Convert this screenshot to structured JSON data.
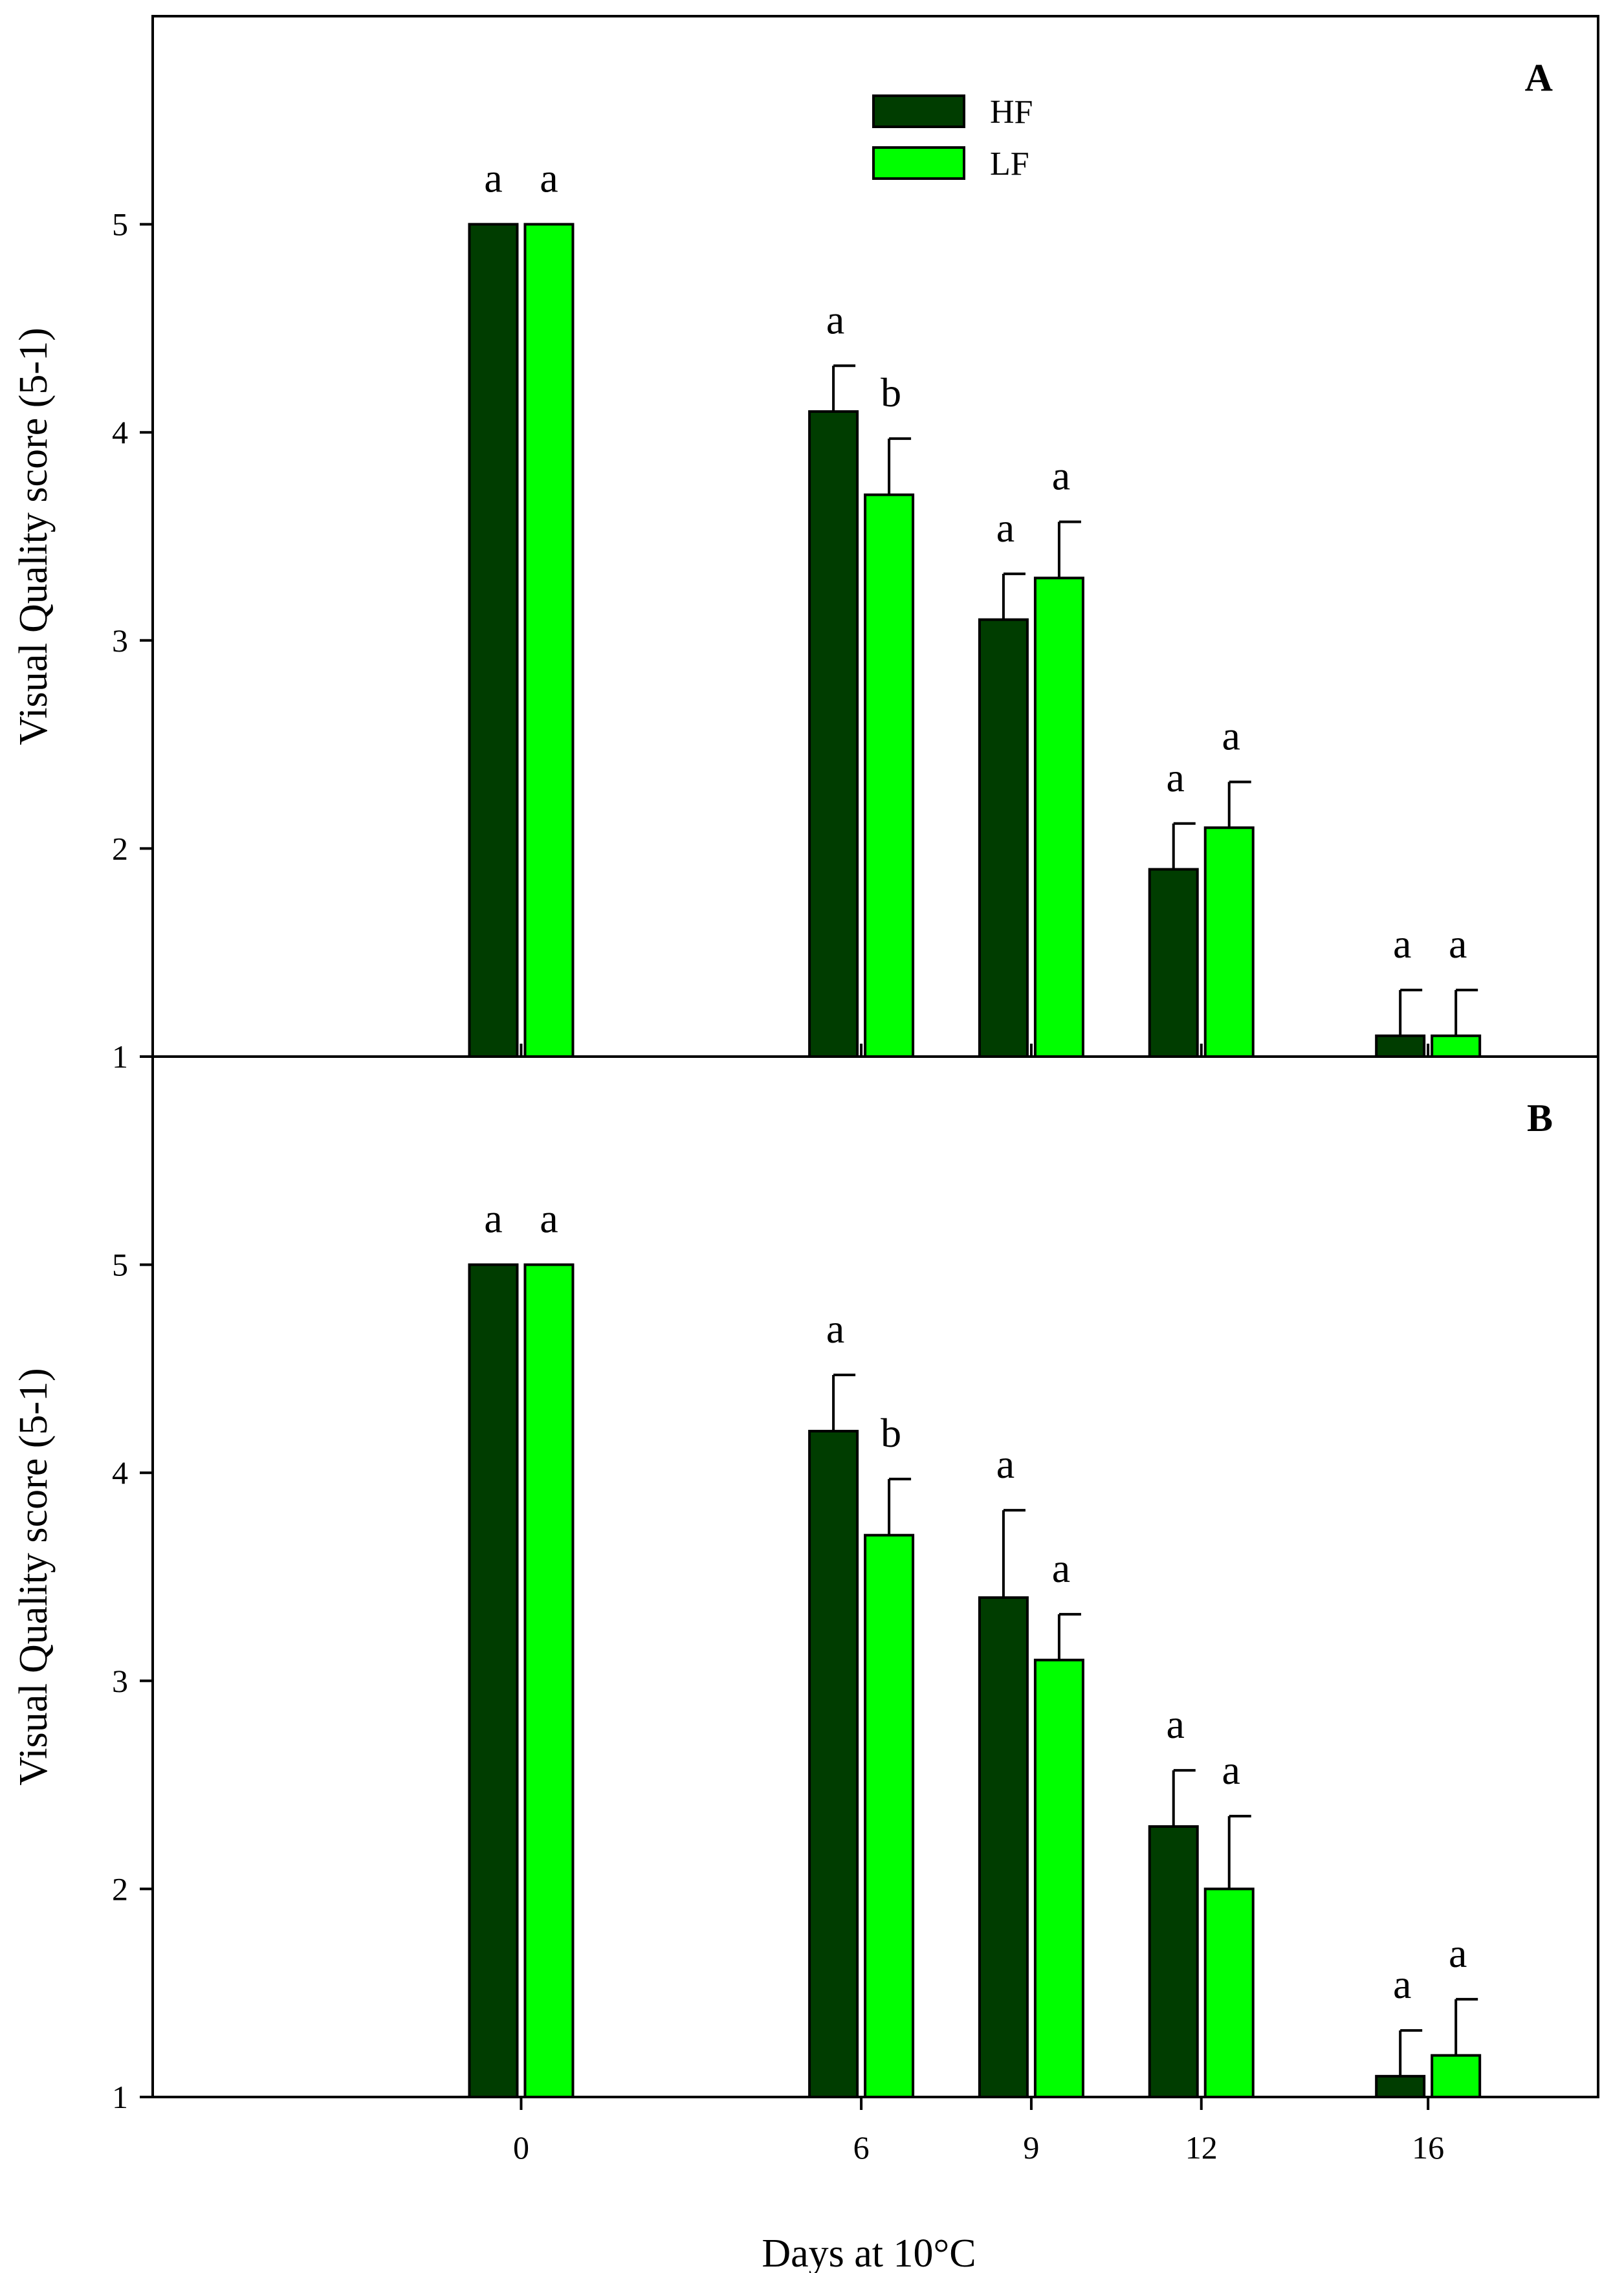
{
  "chart_data": [
    {
      "type": "bar",
      "panel_label": "A",
      "categories": [
        "0",
        "6",
        "9",
        "12",
        "16"
      ],
      "x": [
        0,
        6,
        9,
        12,
        16
      ],
      "xlim": [
        -6.5,
        19
      ],
      "series": [
        {
          "name": "HF",
          "color": "#003d00",
          "values": [
            5.0,
            4.1,
            3.1,
            1.9,
            1.1
          ],
          "errors": [
            0,
            0.22,
            0.22,
            0.22,
            0.22
          ],
          "letters": [
            "a",
            "a",
            "a",
            "a",
            "a"
          ]
        },
        {
          "name": "LF",
          "color": "#00ff00",
          "values": [
            5.0,
            3.7,
            3.3,
            2.1,
            1.1
          ],
          "errors": [
            0,
            0.27,
            0.27,
            0.22,
            0.22
          ],
          "letters": [
            "a",
            "b",
            "a",
            "a",
            "a"
          ]
        }
      ],
      "ylabel": "Visual Quality score (5-1)",
      "ylim": [
        1,
        6
      ],
      "yticks": [
        "1",
        "2",
        "3",
        "4",
        "5"
      ],
      "legend": {
        "position": "top-center",
        "entries": [
          "HF",
          "LF"
        ]
      }
    },
    {
      "type": "bar",
      "panel_label": "B",
      "categories": [
        "0",
        "6",
        "9",
        "12",
        "16"
      ],
      "x": [
        0,
        6,
        9,
        12,
        16
      ],
      "xlim": [
        -6.5,
        19
      ],
      "series": [
        {
          "name": "HF",
          "color": "#003d00",
          "values": [
            5.0,
            4.2,
            3.4,
            2.3,
            1.1
          ],
          "errors": [
            0,
            0.27,
            0.42,
            0.27,
            0.22
          ],
          "letters": [
            "a",
            "a",
            "a",
            "a",
            "a"
          ]
        },
        {
          "name": "LF",
          "color": "#00ff00",
          "values": [
            5.0,
            3.7,
            3.1,
            2.0,
            1.2
          ],
          "errors": [
            0,
            0.27,
            0.22,
            0.35,
            0.27
          ],
          "letters": [
            "a",
            "b",
            "a",
            "a",
            "a"
          ]
        }
      ],
      "ylabel": "Visual Quality score (5-1)",
      "ylim": [
        1,
        6
      ],
      "yticks": [
        "1",
        "2",
        "3",
        "4",
        "5"
      ],
      "xlabel": "Days at 10°C",
      "xticks": [
        "0",
        "6",
        "9",
        "12",
        "16"
      ]
    }
  ]
}
